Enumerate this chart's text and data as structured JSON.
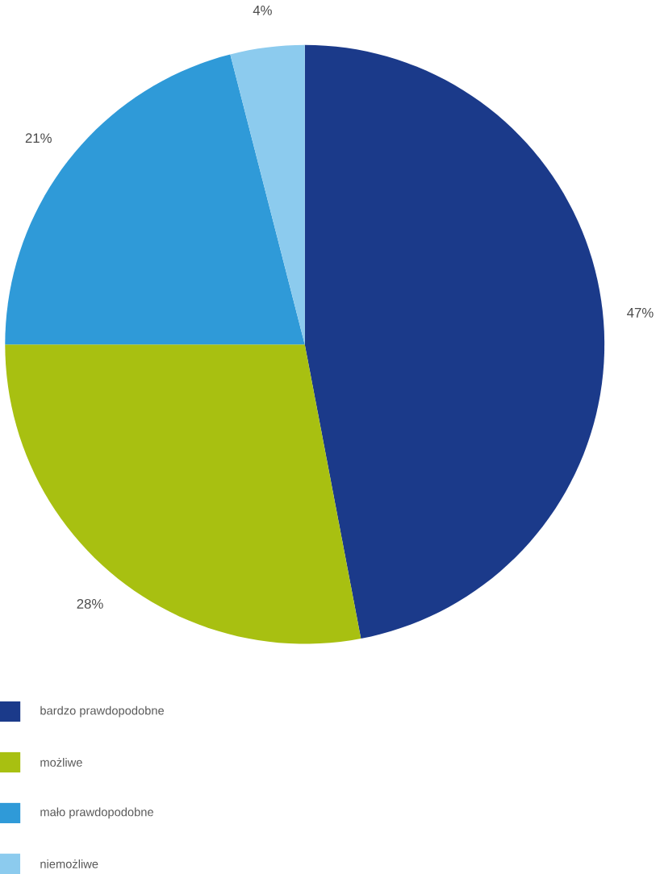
{
  "chart_data": {
    "type": "pie",
    "categories": [
      "bardzo prawdopodobne",
      "możliwe",
      "mało prawdopodobne",
      "niemożliwe"
    ],
    "values": [
      47,
      28,
      21,
      4
    ],
    "colors": [
      "#1b3a8a",
      "#a8c011",
      "#2f9ad8",
      "#8ccbee"
    ],
    "value_labels": [
      "47%",
      "28%",
      "21%",
      "4%"
    ],
    "legend": "bottom left"
  }
}
